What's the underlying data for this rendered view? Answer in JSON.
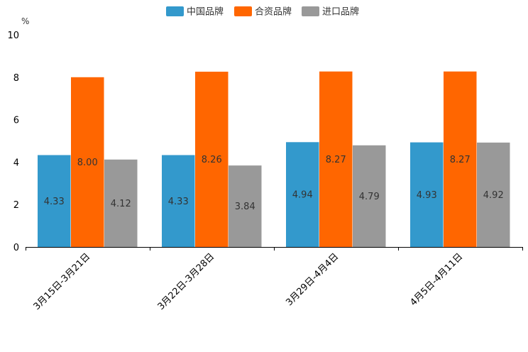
{
  "chart_data": {
    "type": "bar",
    "title": "",
    "xlabel": "",
    "ylabel": "%",
    "ylim": [
      0,
      10
    ],
    "yticks": [
      "0",
      "2",
      "4",
      "6",
      "8",
      "10"
    ],
    "categories": [
      "3月15日-3月21日",
      "3月22日-3月28日",
      "3月29日-4月4日",
      "4月5日-4月11日"
    ],
    "series": [
      {
        "name": "中国品牌",
        "color": "#3399cc",
        "values": [
          4.33,
          4.33,
          4.94,
          4.93
        ],
        "labels": [
          "4.33",
          "4.33",
          "4.94",
          "4.93"
        ]
      },
      {
        "name": "合资品牌",
        "color": "#ff6600",
        "values": [
          8.0,
          8.26,
          8.27,
          8.27
        ],
        "labels": [
          "8.00",
          "8.26",
          "8.27",
          "8.27"
        ]
      },
      {
        "name": "进口品牌",
        "color": "#999999",
        "values": [
          4.12,
          3.84,
          4.79,
          4.92
        ],
        "labels": [
          "4.12",
          "3.84",
          "4.79",
          "4.92"
        ]
      }
    ],
    "legend_position": "top-center",
    "grid": false
  }
}
